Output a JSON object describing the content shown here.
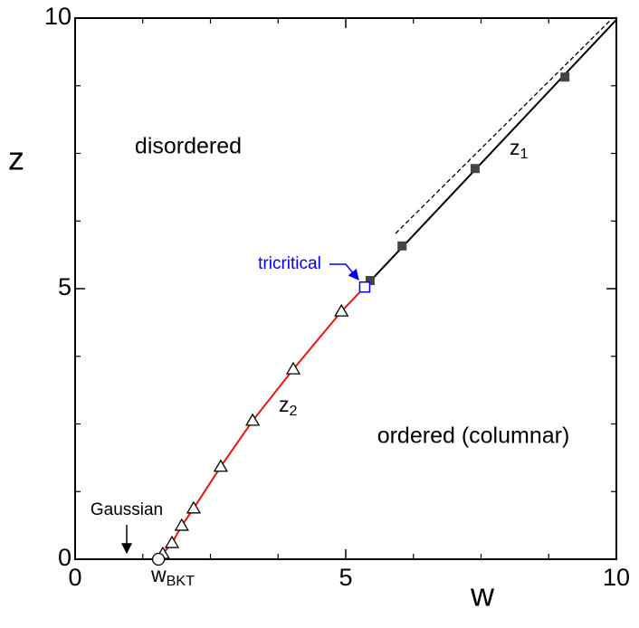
{
  "chart_data": {
    "type": "line",
    "xlabel": "w",
    "ylabel": "z",
    "xlim": [
      0,
      10
    ],
    "ylim": [
      0,
      10
    ],
    "xticks": [
      0,
      5,
      10
    ],
    "yticks": [
      0,
      5,
      10
    ],
    "x_minor_ticks": [
      1.25,
      2.5,
      3.75,
      6.25,
      7.5,
      8.75
    ],
    "y_minor_ticks": [
      1.25,
      2.5,
      3.75,
      6.25,
      7.5,
      8.75
    ],
    "series": [
      {
        "color": "#e8140c",
        "style": "solid",
        "marker": "none",
        "x": [
          1.54,
          1.62,
          1.79,
          1.97,
          2.19,
          2.69,
          3.28,
          4.03,
          4.92,
          5.35
        ],
        "values": [
          0,
          0.1,
          0.3,
          0.62,
          0.94,
          1.71,
          2.56,
          3.51,
          4.58,
          5.03
        ]
      },
      {
        "color": "#000000",
        "style": "none",
        "marker": "triangle",
        "x": [
          1.62,
          1.79,
          1.97,
          2.19,
          2.69,
          3.28,
          4.03,
          4.92
        ],
        "values": [
          0.1,
          0.3,
          0.62,
          0.94,
          1.71,
          2.56,
          3.51,
          4.58
        ]
      },
      {
        "color": "#000000",
        "style": "solid",
        "marker": "none",
        "x": [
          5.35,
          10
        ],
        "values": [
          5.03,
          9.97
        ]
      },
      {
        "color": "#444444",
        "style": "none",
        "marker": "square",
        "x": [
          5.45,
          6.04,
          7.39,
          9.05
        ],
        "values": [
          5.15,
          5.79,
          7.22,
          8.91
        ]
      },
      {
        "color": "#000000",
        "style": "dashed",
        "marker": "none",
        "x": [
          5.92,
          9.93
        ],
        "values": [
          6.02,
          10
        ]
      },
      {
        "color": "#000000",
        "style": "none",
        "marker": "circle",
        "x": [
          1.54
        ],
        "values": [
          0
        ]
      },
      {
        "color": "#0000ee",
        "style": "none",
        "marker": "open-square",
        "x": [
          5.35
        ],
        "values": [
          5.03
        ]
      }
    ],
    "annotations": {
      "disordered": "disordered",
      "ordered": "ordered (columnar)",
      "z1": {
        "text": "z",
        "sub": "1"
      },
      "z2": {
        "text": "z",
        "sub": "2"
      },
      "tricritical": "tricritical",
      "gaussian": "Gaussian",
      "wbkt": {
        "text": "w",
        "sub": "BKT"
      }
    }
  }
}
